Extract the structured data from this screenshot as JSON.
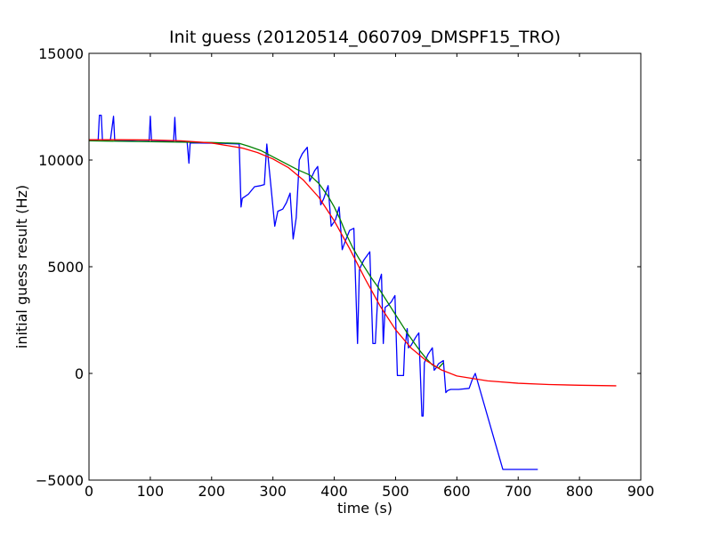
{
  "chart_data": {
    "type": "line",
    "title": "Init guess (20120514_060709_DMSPF15_TRO)",
    "xlabel": "time (s)",
    "ylabel": "initial guess result (Hz)",
    "xlim": [
      0,
      900
    ],
    "ylim": [
      -5000,
      15000
    ],
    "xticks": [
      0,
      100,
      200,
      300,
      400,
      500,
      600,
      700,
      800,
      900
    ],
    "yticks": [
      -5000,
      0,
      5000,
      10000,
      15000
    ],
    "grid": false,
    "legend": "none",
    "series": [
      {
        "color": "#0000ff",
        "x": [
          0,
          15,
          17,
          20,
          22,
          35,
          40,
          42,
          60,
          80,
          98,
          100,
          102,
          120,
          138,
          140,
          142,
          160,
          163,
          165,
          180,
          220,
          245,
          248,
          250,
          260,
          270,
          280,
          286,
          290,
          298,
          303,
          308,
          316,
          322,
          328,
          333,
          338,
          343,
          348,
          356,
          360,
          368,
          373,
          378,
          383,
          390,
          395,
          402,
          408,
          413,
          418,
          425,
          432,
          438,
          441,
          443,
          448,
          458,
          463,
          467,
          472,
          477,
          480,
          483,
          488,
          493,
          499,
          503,
          513,
          515,
          517,
          519,
          521,
          525,
          533,
          538,
          543,
          545,
          547,
          553,
          560,
          563,
          566,
          570,
          578,
          582,
          585,
          590,
          603,
          620,
          625,
          630,
          675,
          732
        ],
        "y": [
          10900,
          10950,
          12100,
          12100,
          10900,
          10950,
          12050,
          10900,
          10900,
          10880,
          10880,
          12050,
          10880,
          10870,
          10870,
          12000,
          10860,
          10860,
          9850,
          10800,
          10800,
          10780,
          10750,
          7800,
          8200,
          8400,
          8750,
          8800,
          8850,
          10750,
          8400,
          6900,
          7600,
          7700,
          8000,
          8450,
          6300,
          7300,
          10000,
          10300,
          10600,
          9000,
          9500,
          9700,
          7900,
          8200,
          8800,
          6900,
          7200,
          7800,
          5800,
          6200,
          6700,
          6800,
          1400,
          4850,
          5000,
          5300,
          5700,
          1400,
          1400,
          4200,
          4650,
          1400,
          3100,
          3200,
          3350,
          3650,
          -100,
          -100,
          1300,
          1600,
          2100,
          1200,
          1300,
          1700,
          1900,
          -2000,
          -2000,
          500,
          900,
          1200,
          150,
          250,
          450,
          600,
          -900,
          -800,
          -750,
          -750,
          -700,
          -300,
          0,
          -4500,
          -4500
        ]
      },
      {
        "color": "#008000",
        "x": [
          0,
          50,
          100,
          150,
          200,
          245,
          260,
          280,
          300,
          320,
          340,
          360,
          375,
          390,
          400,
          410,
          420,
          430,
          440,
          450,
          460,
          470,
          480,
          490,
          500,
          510,
          520,
          530,
          540,
          550,
          560,
          570,
          578
        ],
        "y": [
          10900,
          10880,
          10860,
          10840,
          10820,
          10780,
          10650,
          10450,
          10150,
          9850,
          9550,
          9300,
          8900,
          8300,
          7800,
          7200,
          6500,
          5900,
          5400,
          4950,
          4500,
          4100,
          3650,
          3200,
          2750,
          2300,
          1850,
          1450,
          1050,
          700,
          400,
          250,
          500
        ]
      },
      {
        "color": "#ff0000",
        "x": [
          0,
          50,
          100,
          150,
          200,
          250,
          275,
          300,
          325,
          350,
          375,
          400,
          425,
          450,
          475,
          500,
          525,
          550,
          575,
          600,
          650,
          700,
          750,
          800,
          860
        ],
        "y": [
          10950,
          10950,
          10940,
          10900,
          10800,
          10560,
          10350,
          10050,
          9650,
          9050,
          8250,
          7150,
          5850,
          4450,
          3150,
          2050,
          1200,
          600,
          160,
          -120,
          -350,
          -460,
          -520,
          -555,
          -580
        ]
      }
    ]
  }
}
